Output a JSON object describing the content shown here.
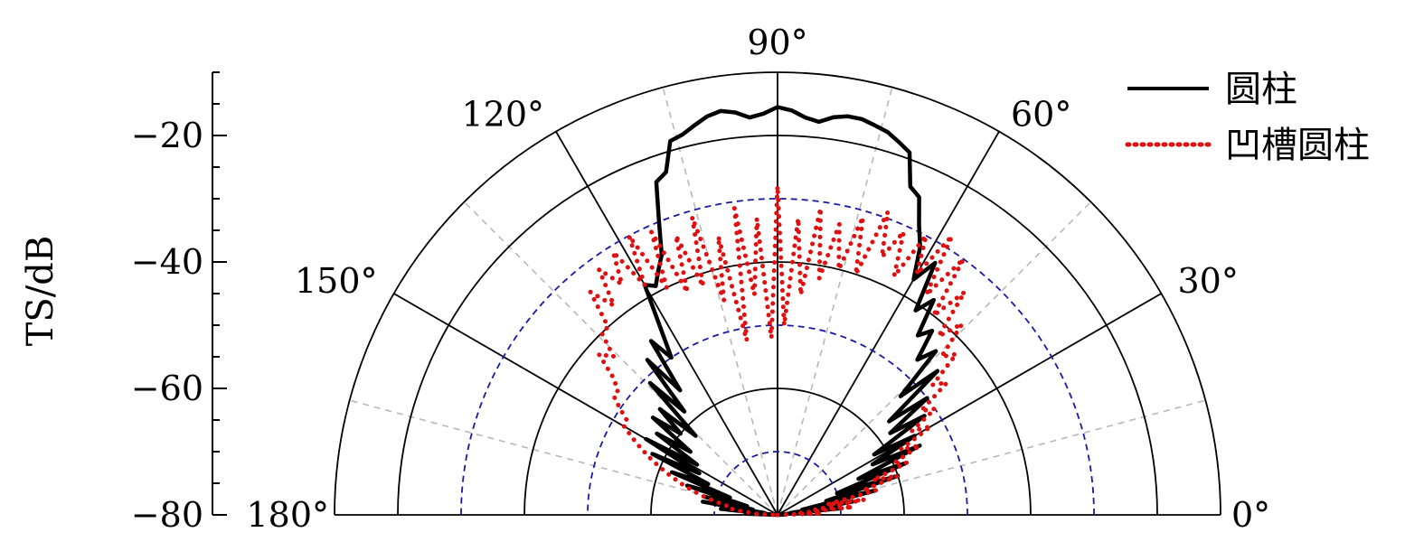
{
  "chart_data": {
    "type": "polar",
    "title": "",
    "ylabel": "TS/dB",
    "r_range": [
      -80,
      -10
    ],
    "r_ticks": [
      -20,
      -40,
      -60,
      -80
    ],
    "r_tick_labels": [
      "−20",
      "−40",
      "−60",
      "−80"
    ],
    "solid_rings": [
      -10,
      -20,
      -40,
      -60
    ],
    "dashed_rings": [
      -30,
      -50,
      -70
    ],
    "theta_range_deg": [
      0,
      180
    ],
    "theta_ticks_deg": [
      0,
      30,
      60,
      90,
      120,
      150,
      180
    ],
    "theta_tick_labels": [
      "0°",
      "30°",
      "60°",
      "90°",
      "120°",
      "150°",
      "180°"
    ],
    "theta_spoke_solid_deg": [
      0,
      30,
      60,
      90,
      120,
      150,
      180
    ],
    "theta_spoke_dashed_deg": [
      15,
      45,
      75,
      105,
      135,
      165
    ],
    "grid": true,
    "legend_position": "top-right",
    "series": [
      {
        "name": "圆柱",
        "style": "solid",
        "color": "#000000",
        "points": [
          [
            0,
            -80
          ],
          [
            2,
            -79
          ],
          [
            4,
            -80
          ],
          [
            6,
            -70
          ],
          [
            8,
            -78
          ],
          [
            10,
            -68
          ],
          [
            12,
            -76
          ],
          [
            14,
            -64
          ],
          [
            16,
            -72
          ],
          [
            18,
            -60
          ],
          [
            20,
            -70
          ],
          [
            22,
            -58
          ],
          [
            24,
            -66
          ],
          [
            26,
            -55
          ],
          [
            28,
            -63
          ],
          [
            30,
            -55
          ],
          [
            32,
            -62
          ],
          [
            34,
            -52
          ],
          [
            36,
            -58
          ],
          [
            38,
            -50
          ],
          [
            40,
            -57
          ],
          [
            42,
            -46
          ],
          [
            44,
            -53
          ],
          [
            46,
            -44
          ],
          [
            48,
            -47
          ],
          [
            50,
            -42
          ],
          [
            52,
            -44
          ],
          [
            54,
            -38
          ],
          [
            56,
            -41
          ],
          [
            58,
            -33
          ],
          [
            60,
            -37
          ],
          [
            62,
            -32
          ],
          [
            64,
            -29
          ],
          [
            66,
            -25
          ],
          [
            68,
            -24
          ],
          [
            70,
            -19
          ],
          [
            72,
            -18
          ],
          [
            74,
            -17
          ],
          [
            76,
            -16.5
          ],
          [
            78,
            -16
          ],
          [
            80,
            -16
          ],
          [
            82,
            -16.5
          ],
          [
            84,
            -17.5
          ],
          [
            86,
            -17
          ],
          [
            88,
            -16
          ],
          [
            90,
            -15.5
          ],
          [
            92,
            -16.5
          ],
          [
            94,
            -17
          ],
          [
            96,
            -16
          ],
          [
            98,
            -15.5
          ],
          [
            100,
            -16
          ],
          [
            102,
            -17
          ],
          [
            104,
            -18
          ],
          [
            106,
            -18.5
          ],
          [
            108,
            -23
          ],
          [
            110,
            -24
          ],
          [
            112,
            -30
          ],
          [
            114,
            -35
          ],
          [
            116,
            -37
          ],
          [
            118,
            -39
          ],
          [
            120,
            -38
          ],
          [
            122,
            -45
          ],
          [
            124,
            -50
          ],
          [
            126,
            -46
          ],
          [
            128,
            -55
          ],
          [
            130,
            -48
          ],
          [
            132,
            -58
          ],
          [
            134,
            -51
          ],
          [
            136,
            -62
          ],
          [
            138,
            -55
          ],
          [
            140,
            -60
          ],
          [
            142,
            -55
          ],
          [
            144,
            -63
          ],
          [
            146,
            -57
          ],
          [
            148,
            -65
          ],
          [
            150,
            -56
          ],
          [
            152,
            -66
          ],
          [
            154,
            -58
          ],
          [
            156,
            -68
          ],
          [
            158,
            -62
          ],
          [
            160,
            -72
          ],
          [
            162,
            -65
          ],
          [
            164,
            -75
          ],
          [
            166,
            -68
          ],
          [
            168,
            -76
          ],
          [
            170,
            -68
          ],
          [
            172,
            -78
          ],
          [
            174,
            -71
          ],
          [
            176,
            -79
          ],
          [
            178,
            -75
          ],
          [
            180,
            -80
          ]
        ]
      },
      {
        "name": "凹槽圆柱",
        "style": "dotted",
        "color": "#e01010",
        "points": [
          [
            0,
            -80
          ],
          [
            2,
            -73
          ],
          [
            4,
            -77
          ],
          [
            6,
            -68
          ],
          [
            8,
            -74
          ],
          [
            10,
            -66
          ],
          [
            12,
            -72
          ],
          [
            14,
            -64
          ],
          [
            16,
            -66
          ],
          [
            18,
            -60
          ],
          [
            20,
            -64
          ],
          [
            22,
            -58
          ],
          [
            24,
            -60
          ],
          [
            26,
            -55
          ],
          [
            28,
            -58
          ],
          [
            30,
            -52
          ],
          [
            32,
            -55
          ],
          [
            34,
            -50
          ],
          [
            36,
            -52
          ],
          [
            38,
            -46
          ],
          [
            40,
            -48
          ],
          [
            42,
            -42
          ],
          [
            44,
            -44
          ],
          [
            46,
            -38
          ],
          [
            48,
            -42
          ],
          [
            50,
            -34
          ],
          [
            52,
            -40
          ],
          [
            54,
            -30
          ],
          [
            56,
            -38
          ],
          [
            58,
            -28
          ],
          [
            60,
            -36
          ],
          [
            62,
            -30
          ],
          [
            64,
            -38
          ],
          [
            66,
            -31
          ],
          [
            68,
            -36
          ],
          [
            70,
            -29
          ],
          [
            72,
            -40
          ],
          [
            74,
            -31
          ],
          [
            76,
            -40
          ],
          [
            78,
            -33
          ],
          [
            80,
            -42
          ],
          [
            82,
            -31
          ],
          [
            84,
            -45
          ],
          [
            86,
            -33
          ],
          [
            88,
            -50
          ],
          [
            90,
            -28
          ],
          [
            92,
            -52
          ],
          [
            94,
            -33
          ],
          [
            96,
            -45
          ],
          [
            98,
            -31
          ],
          [
            100,
            -52
          ],
          [
            102,
            -35
          ],
          [
            104,
            -45
          ],
          [
            106,
            -31
          ],
          [
            108,
            -42
          ],
          [
            110,
            -33
          ],
          [
            112,
            -42
          ],
          [
            114,
            -31
          ],
          [
            116,
            -40
          ],
          [
            118,
            -30
          ],
          [
            120,
            -38
          ],
          [
            122,
            -31
          ],
          [
            124,
            -36
          ],
          [
            126,
            -32
          ],
          [
            128,
            -38
          ],
          [
            130,
            -34
          ],
          [
            132,
            -40
          ],
          [
            134,
            -40
          ],
          [
            136,
            -44
          ],
          [
            138,
            -42
          ],
          [
            140,
            -46
          ],
          [
            142,
            -48
          ],
          [
            144,
            -48
          ],
          [
            146,
            -50
          ],
          [
            148,
            -52
          ],
          [
            150,
            -52
          ],
          [
            152,
            -54
          ],
          [
            154,
            -56
          ],
          [
            156,
            -58
          ],
          [
            158,
            -60
          ],
          [
            160,
            -62
          ],
          [
            162,
            -64
          ],
          [
            164,
            -66
          ],
          [
            166,
            -68
          ],
          [
            168,
            -70
          ],
          [
            170,
            -72
          ],
          [
            172,
            -72
          ],
          [
            174,
            -74
          ],
          [
            176,
            -76
          ],
          [
            178,
            -77
          ],
          [
            180,
            -80
          ]
        ]
      }
    ]
  }
}
